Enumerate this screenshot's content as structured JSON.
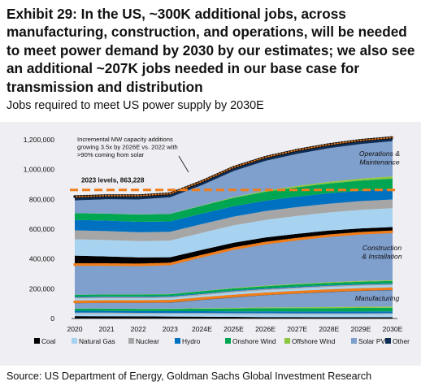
{
  "title": "Exhibit 29: In the US, ~300K additional jobs, across manufacturing, construction, and operations, will be needed to meet power demand by 2030 by our estimates; we also see an additional ~207K jobs needed in our base case for transmission and distribution",
  "subtitle": "Jobs required to meet US power supply by 2030E",
  "source": "Source: US Department of Energy, Goldman Sachs Global Investment Research",
  "chart_data": {
    "type": "area",
    "stacked": true,
    "categories": [
      "2020",
      "2021",
      "2022",
      "2023",
      "2024E",
      "2025E",
      "2026E",
      "2027E",
      "2028E",
      "2029E",
      "2030E"
    ],
    "ylim": [
      0,
      1200000
    ],
    "yticks": [
      "0",
      "200,000",
      "400,000",
      "600,000",
      "800,000",
      "1,000,000",
      "1,200,000"
    ],
    "ytick_values": [
      0,
      200000,
      400000,
      600000,
      800000,
      1000000,
      1200000
    ],
    "grid": false,
    "legend_position": "bottom",
    "series_groups": [
      {
        "group": "Manufacturing",
        "series": [
          {
            "name": "Coal",
            "color": "#000000",
            "values": [
              16000,
              15000,
              14000,
              13000,
              12000,
              11000,
              10000,
              9000,
              8000,
              8000,
              8000
            ]
          },
          {
            "name": "Natural Gas",
            "color": "#a7d3f0",
            "values": [
              18000,
              18000,
              18000,
              18000,
              19000,
              19000,
              20000,
              20000,
              21000,
              21000,
              22000
            ]
          },
          {
            "name": "Nuclear",
            "color": "#a6a6a6",
            "values": [
              6000,
              6000,
              6000,
              6000,
              6000,
              6000,
              6000,
              6000,
              6000,
              6000,
              6000
            ]
          },
          {
            "name": "Hydro",
            "color": "#0070c0",
            "values": [
              12000,
              12000,
              12000,
              12000,
              12000,
              12000,
              12000,
              12000,
              12000,
              12000,
              12000
            ]
          },
          {
            "name": "Onshore Wind",
            "color": "#00a651",
            "values": [
              14000,
              15000,
              15000,
              15000,
              17000,
              19000,
              21000,
              22000,
              23000,
              24000,
              24000
            ]
          },
          {
            "name": "Offshore Wind",
            "color": "#8dc63f",
            "values": [
              1000,
              1000,
              1000,
              2000,
              3000,
              4000,
              5000,
              6000,
              7000,
              8000,
              8000
            ]
          },
          {
            "name": "Solar PV",
            "color": "#7f9fcc",
            "values": [
              35000,
              37000,
              38000,
              40000,
              55000,
              70000,
              82000,
              92000,
              100000,
              106000,
              110000
            ]
          },
          {
            "name": "Other",
            "color": "#0e2d55",
            "values": [
              10000,
              10000,
              10000,
              10000,
              10000,
              10000,
              10000,
              10000,
              10000,
              10000,
              10000
            ]
          }
        ]
      },
      {
        "group": "Construction & Installation",
        "series": [
          {
            "name": "Coal",
            "color": "#000000",
            "values": [
              2000,
              2000,
              2000,
              2000,
              2000,
              2000,
              2000,
              2000,
              2000,
              2000,
              2000
            ]
          },
          {
            "name": "Natural Gas",
            "color": "#a7d3f0",
            "values": [
              20000,
              20000,
              20000,
              20000,
              20000,
              22000,
              22000,
              22000,
              22000,
              22000,
              22000
            ]
          },
          {
            "name": "Nuclear",
            "color": "#a6a6a6",
            "values": [
              8000,
              8000,
              8000,
              8000,
              8000,
              8000,
              8000,
              8000,
              8000,
              8000,
              8000
            ]
          },
          {
            "name": "Hydro",
            "color": "#0070c0",
            "values": [
              5000,
              5000,
              5000,
              5000,
              5000,
              5000,
              5000,
              5000,
              5000,
              5000,
              5000
            ]
          },
          {
            "name": "Onshore Wind",
            "color": "#00a651",
            "values": [
              12000,
              12000,
              12000,
              12000,
              14000,
              14000,
              14000,
              15000,
              15000,
              15000,
              15000
            ]
          },
          {
            "name": "Offshore Wind",
            "color": "#8dc63f",
            "values": [
              1000,
              1000,
              1000,
              1000,
              2000,
              3000,
              4000,
              4000,
              5000,
              5000,
              5000
            ]
          },
          {
            "name": "Solar PV",
            "color": "#7f9fcc",
            "values": [
              200000,
              198000,
              196000,
              200000,
              232000,
              262000,
              283000,
              298000,
              310000,
              318000,
              323000
            ]
          },
          {
            "name": "Other",
            "color": "#0e2d55",
            "values": [
              2000,
              2000,
              2000,
              2000,
              2000,
              2000,
              2000,
              2000,
              2000,
              2000,
              2000
            ]
          }
        ]
      },
      {
        "group": "Operations & Maintenance",
        "series": [
          {
            "name": "Coal",
            "color": "#000000",
            "values": [
              60000,
              55000,
              50000,
              45000,
              42000,
              40000,
              38000,
              36000,
              34000,
              33000,
              32000
            ]
          },
          {
            "name": "Natural Gas",
            "color": "#a7d3f0",
            "values": [
              110000,
              110000,
              110000,
              112000,
              114000,
              116000,
              118000,
              120000,
              122000,
              124000,
              126000
            ]
          },
          {
            "name": "Nuclear",
            "color": "#a6a6a6",
            "values": [
              60000,
              60000,
              59000,
              59000,
              59000,
              59000,
              59000,
              59000,
              59000,
              59000,
              59000
            ]
          },
          {
            "name": "Hydro",
            "color": "#0070c0",
            "values": [
              70000,
              70000,
              70000,
              70000,
              70000,
              70000,
              70000,
              70000,
              70000,
              70000,
              70000
            ]
          },
          {
            "name": "Onshore Wind",
            "color": "#00a651",
            "values": [
              45000,
              47000,
              49000,
              50000,
              53000,
              56000,
              60000,
              63000,
              66000,
              68000,
              70000
            ]
          },
          {
            "name": "Offshore Wind",
            "color": "#8dc63f",
            "values": [
              1000,
              1000,
              1000,
              1000,
              3000,
              5000,
              7000,
              9000,
              11000,
              13000,
              15000
            ]
          },
          {
            "name": "Solar PV",
            "color": "#7f9fcc",
            "values": [
              85000,
              95000,
              100000,
              110000,
              135000,
              175000,
              200000,
              215000,
              225000,
              232000,
              236000
            ]
          },
          {
            "name": "Other",
            "color": "#0e2d55",
            "values": [
              25000,
              25000,
              25000,
              25000,
              25000,
              25000,
              25000,
              25000,
              25000,
              25000,
              25000
            ]
          }
        ]
      }
    ],
    "reference_line": {
      "label": "2023 levels, 863,228",
      "value": 863228,
      "color": "#f07d1a"
    },
    "group_labels": [
      "Operations & Maintenance",
      "Construction & Installation",
      "Manufacturing"
    ],
    "annotation": "Incremental MW capacity additions growing 3.5x by 2026E vs. 2022 with >90% coming from solar",
    "legend": [
      "Coal",
      "Natural Gas",
      "Nuclear",
      "Hydro",
      "Onshore Wind",
      "Offshore Wind",
      "Solar PV",
      "Other"
    ],
    "legend_colors": [
      "#000000",
      "#a7d3f0",
      "#a6a6a6",
      "#0070c0",
      "#00a651",
      "#8dc63f",
      "#7f9fcc",
      "#0e2d55"
    ]
  }
}
